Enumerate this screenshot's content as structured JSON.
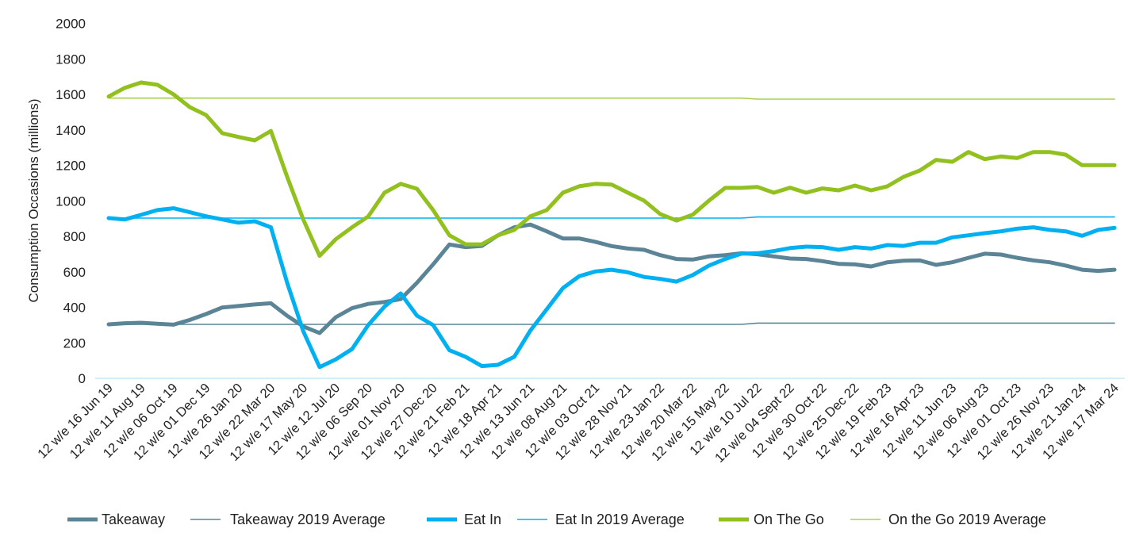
{
  "chart_data": {
    "type": "line",
    "ylabel": "Consumption Occasions (millions)",
    "xlabel": "",
    "ylim": [
      0,
      2000
    ],
    "yticks": [
      0,
      200,
      400,
      600,
      800,
      1000,
      1200,
      1400,
      1600,
      1800,
      2000
    ],
    "grid": false,
    "legend": "bottom",
    "x_tick_labels": [
      "12 w/e 16 Jun 19",
      "12 w/e 11 Aug 19",
      "12 w/e 06 Oct 19",
      "12 w/e 01 Dec 19",
      "12 w/e 26 Jan 20",
      "12 w/e 22 Mar 20",
      "12 w/e 17 May 20",
      "12 w/e 12 Jul 20",
      "12 w/e 06 Sep 20",
      "12 w/e 01 Nov 20",
      "12 w/e 27 Dec 20",
      "12 w/e 21 Feb 21",
      "12 w/e 18 Apr 21",
      "12 w/e 13 Jun 21",
      "12 w/e 08 Aug 21",
      "12 w/e 03 Oct 21",
      "12 w/e 28 Nov 21",
      "12 w/e 23 Jan 22",
      "12 w/e 20 Mar 22",
      "12 w/e 15 May 22",
      "12 w/e 10 Jul 22",
      "12 w/e 04 Sept 22",
      "12 w/e 30 Oct 22",
      "12 w/e 25 Dec 22",
      "12 w/e 19 Feb 23",
      "12 w/e 16 Apr 23",
      "12 w/e 11 Jun 23",
      "12 w/e 06 Aug 23",
      "12 w/e 01 Oct 23",
      "12 w/e 26 Nov 23",
      "12 w/e 21 Jan 24",
      "12 w/e 17 Mar 24"
    ],
    "series": [
      {
        "name": "Takeaway",
        "color": "#5b8597",
        "style": "thick",
        "values": [
          304,
          310,
          313,
          307,
          302,
          329,
          362,
          399,
          407,
          416,
          423,
          352,
          292,
          255,
          344,
          395,
          419,
          430,
          446,
          538,
          642,
          754,
          739,
          746,
          806,
          851,
          866,
          828,
          788,
          788,
          769,
          745,
          731,
          724,
          694,
          672,
          669,
          687,
          694,
          705,
          699,
          687,
          675,
          672,
          660,
          645,
          642,
          630,
          654,
          663,
          664,
          639,
          654,
          679,
          702,
          697,
          679,
          664,
          654,
          635,
          612,
          605,
          612
        ]
      },
      {
        "name": "Takeaway 2019 Average",
        "color": "#5b8597",
        "style": "thin",
        "values": [
          304,
          304,
          304,
          304,
          304,
          304,
          304,
          304,
          304,
          304,
          304,
          304,
          304,
          304,
          304,
          304,
          304,
          304,
          304,
          304,
          304,
          304,
          304,
          304,
          304,
          304,
          304,
          304,
          304,
          304,
          304,
          304,
          304,
          304,
          304,
          304,
          304,
          304,
          304,
          304,
          311,
          311,
          311,
          311,
          311,
          311,
          311,
          311,
          311,
          311,
          311,
          311,
          311,
          311,
          311,
          311,
          311,
          311,
          311,
          311,
          311,
          311,
          311
        ]
      },
      {
        "name": "Eat In",
        "color": "#00b0f0",
        "style": "thick",
        "values": [
          903,
          895,
          921,
          948,
          958,
          936,
          913,
          895,
          877,
          885,
          851,
          538,
          264,
          63,
          107,
          165,
          300,
          404,
          478,
          353,
          300,
          158,
          121,
          69,
          76,
          121,
          270,
          389,
          508,
          575,
          602,
          612,
          597,
          571,
          560,
          545,
          582,
          635,
          672,
          702,
          705,
          717,
          734,
          742,
          739,
          724,
          739,
          731,
          751,
          746,
          764,
          764,
          794,
          806,
          818,
          828,
          843,
          851,
          836,
          828,
          803,
          836,
          848
        ]
      },
      {
        "name": "Eat In 2019 Average",
        "color": "#00b0f0",
        "style": "thin",
        "values": [
          903,
          903,
          903,
          903,
          903,
          903,
          903,
          903,
          903,
          903,
          903,
          903,
          903,
          903,
          903,
          903,
          903,
          903,
          903,
          903,
          903,
          903,
          903,
          903,
          903,
          903,
          903,
          903,
          903,
          903,
          903,
          903,
          903,
          903,
          903,
          903,
          903,
          903,
          903,
          903,
          909,
          909,
          909,
          909,
          909,
          909,
          909,
          909,
          909,
          909,
          909,
          909,
          909,
          909,
          909,
          909,
          909,
          909,
          909,
          909,
          909,
          909,
          909
        ]
      },
      {
        "name": "On The Go",
        "color": "#92c01f",
        "style": "thick",
        "values": [
          1588,
          1637,
          1667,
          1654,
          1600,
          1528,
          1484,
          1381,
          1360,
          1341,
          1394,
          1135,
          894,
          690,
          784,
          851,
          912,
          1046,
          1096,
          1068,
          948,
          806,
          755,
          755,
          806,
          836,
          913,
          948,
          1046,
          1082,
          1096,
          1092,
          1046,
          1001,
          925,
          889,
          922,
          1001,
          1073,
          1073,
          1078,
          1046,
          1074,
          1046,
          1070,
          1059,
          1086,
          1059,
          1082,
          1135,
          1171,
          1231,
          1220,
          1275,
          1235,
          1250,
          1241,
          1275,
          1275,
          1260,
          1201,
          1201,
          1201
        ]
      },
      {
        "name": "On the Go 2019 Average",
        "color": "#a9d04a",
        "style": "thin",
        "values": [
          1579,
          1579,
          1579,
          1579,
          1579,
          1579,
          1579,
          1579,
          1579,
          1579,
          1579,
          1579,
          1579,
          1579,
          1579,
          1579,
          1579,
          1579,
          1579,
          1579,
          1579,
          1579,
          1579,
          1579,
          1579,
          1579,
          1579,
          1579,
          1579,
          1579,
          1579,
          1579,
          1579,
          1579,
          1579,
          1579,
          1579,
          1579,
          1579,
          1579,
          1573,
          1573,
          1573,
          1573,
          1573,
          1573,
          1573,
          1573,
          1573,
          1573,
          1573,
          1573,
          1573,
          1573,
          1573,
          1573,
          1573,
          1573,
          1573,
          1573,
          1573,
          1573,
          1573
        ]
      }
    ]
  }
}
